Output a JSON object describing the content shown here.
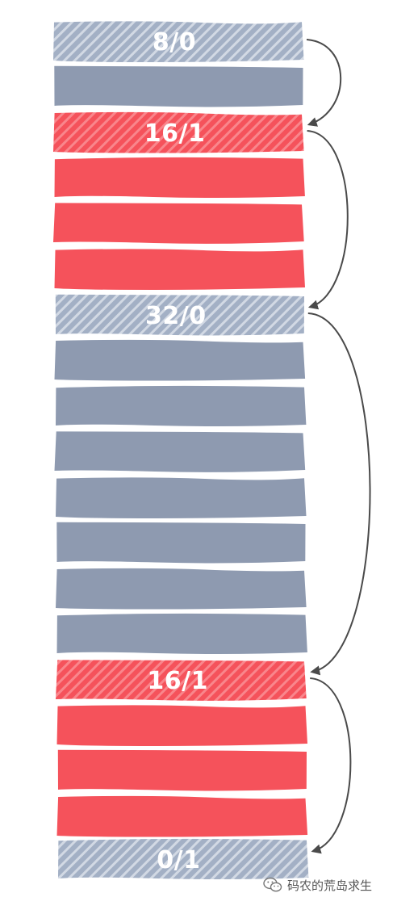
{
  "colors": {
    "header": "#a3b0c5",
    "header_stripe": "#d2d9e4",
    "data_gray": "#8e9ab0",
    "red": "#f5525b",
    "red_stripe": "#f9868c",
    "arrow": "#4a4a4a"
  },
  "blocks": [
    {
      "label": "8/0",
      "kind": "header",
      "color": "gray"
    },
    {
      "kind": "data",
      "color": "gray"
    },
    {
      "label": "16/1",
      "kind": "header",
      "color": "red"
    },
    {
      "kind": "data",
      "color": "red"
    },
    {
      "kind": "data",
      "color": "red"
    },
    {
      "kind": "data",
      "color": "red"
    },
    {
      "label": "32/0",
      "kind": "header",
      "color": "gray"
    },
    {
      "kind": "data",
      "color": "gray"
    },
    {
      "kind": "data",
      "color": "gray"
    },
    {
      "kind": "data",
      "color": "gray"
    },
    {
      "kind": "data",
      "color": "gray"
    },
    {
      "kind": "data",
      "color": "gray"
    },
    {
      "kind": "data",
      "color": "gray"
    },
    {
      "kind": "data",
      "color": "gray"
    },
    {
      "label": "16/1",
      "kind": "header",
      "color": "red"
    },
    {
      "kind": "data",
      "color": "red"
    },
    {
      "kind": "data",
      "color": "red"
    },
    {
      "kind": "data",
      "color": "red"
    },
    {
      "label": "0/1",
      "kind": "header",
      "color": "gray"
    }
  ],
  "links": [
    {
      "from": 0,
      "to": 2
    },
    {
      "from": 2,
      "to": 6
    },
    {
      "from": 6,
      "to": 14
    },
    {
      "from": 14,
      "to": 18
    }
  ],
  "watermark": {
    "text": "码农的荒岛求生",
    "icon": "wechat-icon"
  }
}
